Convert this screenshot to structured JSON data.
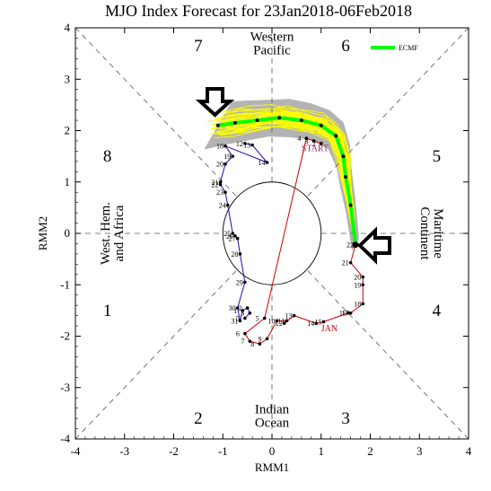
{
  "chart_data": {
    "type": "scatter",
    "title": "MJO Index Forecast for 23Jan2018-06Feb2018",
    "xlabel": "RMM1",
    "ylabel": "RMM2",
    "xlim": [
      -4,
      4
    ],
    "ylim": [
      -4,
      4
    ],
    "xticks": [
      "-4",
      "-3",
      "-2",
      "-1",
      "0",
      "1",
      "2",
      "3",
      "4"
    ],
    "yticks": [
      "-4",
      "-3",
      "-2",
      "-1",
      "0",
      "1",
      "2",
      "3",
      "4"
    ],
    "unit_circle_radius": 1,
    "phases": [
      {
        "label": "1",
        "x": -3.35,
        "y": -1.5
      },
      {
        "label": "2",
        "x": -1.5,
        "y": -3.6
      },
      {
        "label": "3",
        "x": 1.5,
        "y": -3.6
      },
      {
        "label": "4",
        "x": 3.35,
        "y": -1.5
      },
      {
        "label": "5",
        "x": 3.35,
        "y": 1.5
      },
      {
        "label": "6",
        "x": 1.5,
        "y": 3.65
      },
      {
        "label": "7",
        "x": -1.5,
        "y": 3.65
      },
      {
        "label": "8",
        "x": -3.35,
        "y": 1.5
      }
    ],
    "regions": [
      {
        "lines": [
          "Western",
          "Pacific"
        ],
        "x": 0,
        "y": 3.75,
        "rotate": 0
      },
      {
        "lines": [
          "Indian",
          "Ocean"
        ],
        "x": 0,
        "y": -3.5,
        "rotate": 0
      },
      {
        "lines": [
          "West. Hem.",
          "and Africa"
        ],
        "x": -3.25,
        "y": 0,
        "rotate": -90
      },
      {
        "lines": [
          "Maritime",
          "Continent"
        ],
        "x": 3.25,
        "y": 0,
        "rotate": 90
      }
    ],
    "legend": {
      "label": "ECMF",
      "color": "#00ff00",
      "position": "top-right"
    },
    "observed": {
      "color_first": "#cc0000",
      "color_second": "#3300aa",
      "month_labels": [
        {
          "text": "JAN",
          "x": 1.0,
          "y": -1.9,
          "color": "#cc0000"
        },
        {
          "text": "START",
          "x": 0.6,
          "y": 1.6,
          "color": "#993366"
        }
      ],
      "points": [
        {
          "d": "2",
          "x": 1.0,
          "y": 1.75
        },
        {
          "d": "3",
          "x": 0.85,
          "y": 1.8
        },
        {
          "d": "4",
          "x": 0.7,
          "y": 1.85
        },
        {
          "d": "5",
          "x": -0.15,
          "y": -1.65
        },
        {
          "d": "6",
          "x": -0.55,
          "y": -1.95
        },
        {
          "d": "7",
          "x": -0.45,
          "y": -2.1
        },
        {
          "d": "8",
          "x": -0.25,
          "y": -2.15
        },
        {
          "d": "9",
          "x": -0.1,
          "y": -2.05
        },
        {
          "d": "10",
          "x": 0.1,
          "y": -1.7
        },
        {
          "d": "11",
          "x": 0.3,
          "y": -1.7
        },
        {
          "d": "12",
          "x": 0.25,
          "y": -1.75
        },
        {
          "d": "13",
          "x": 0.45,
          "y": -1.6
        },
        {
          "d": "14",
          "x": 0.9,
          "y": -1.75
        },
        {
          "d": "15",
          "x": 1.05,
          "y": -1.72
        },
        {
          "d": "16",
          "x": 1.55,
          "y": -1.55
        },
        {
          "d": "17",
          "x": 1.6,
          "y": -1.55
        },
        {
          "d": "18",
          "x": 1.85,
          "y": -1.37
        },
        {
          "d": "19",
          "x": 1.85,
          "y": -1.0
        },
        {
          "d": "20",
          "x": 1.85,
          "y": -0.85
        },
        {
          "d": "21",
          "x": 1.6,
          "y": -0.57
        },
        {
          "d": "22",
          "x": 1.7,
          "y": -0.22
        }
      ],
      "path2": [
        {
          "d": "12",
          "x": -0.55,
          "y": 1.75
        },
        {
          "d": "13",
          "x": -0.4,
          "y": 1.72
        },
        {
          "d": "14",
          "x": -0.1,
          "y": 1.38
        },
        {
          "d": "18",
          "x": -0.95,
          "y": 1.7
        },
        {
          "d": "19",
          "x": -0.8,
          "y": 1.5
        },
        {
          "d": "20",
          "x": -0.95,
          "y": 1.35
        },
        {
          "d": "21",
          "x": -1.05,
          "y": 1.0
        },
        {
          "d": "22",
          "x": -1.05,
          "y": 0.95
        },
        {
          "d": "23",
          "x": -0.95,
          "y": 0.8
        },
        {
          "d": "24",
          "x": -0.9,
          "y": 0.55
        },
        {
          "d": "25",
          "x": -0.8,
          "y": 0.0
        },
        {
          "d": "26",
          "x": -0.75,
          "y": -0.05
        },
        {
          "d": "27",
          "x": -0.7,
          "y": -0.1
        },
        {
          "d": "28",
          "x": -0.65,
          "y": -0.4
        },
        {
          "d": "29",
          "x": -0.55,
          "y": -0.95
        },
        {
          "d": "30",
          "x": -0.7,
          "y": -1.45
        },
        {
          "d": "31",
          "x": -0.65,
          "y": -1.7
        },
        {
          "d": "1",
          "x": -0.6,
          "y": -1.5
        },
        {
          "d": "2",
          "x": -0.5,
          "y": -1.45
        },
        {
          "d": "3",
          "x": -0.45,
          "y": -1.55
        },
        {
          "d": "5",
          "x": -0.55,
          "y": -1.65
        }
      ]
    },
    "ensemble_mean": [
      {
        "x": 1.7,
        "y": -0.22
      },
      {
        "x": 1.6,
        "y": 0.55
      },
      {
        "x": 1.5,
        "y": 1.1
      },
      {
        "x": 1.45,
        "y": 1.5
      },
      {
        "x": 1.3,
        "y": 1.9
      },
      {
        "x": 1.0,
        "y": 2.1
      },
      {
        "x": 0.6,
        "y": 2.2
      },
      {
        "x": 0.15,
        "y": 2.25
      },
      {
        "x": -0.3,
        "y": 2.2
      },
      {
        "x": -0.75,
        "y": 2.15
      },
      {
        "x": -1.1,
        "y": 2.1
      }
    ]
  }
}
